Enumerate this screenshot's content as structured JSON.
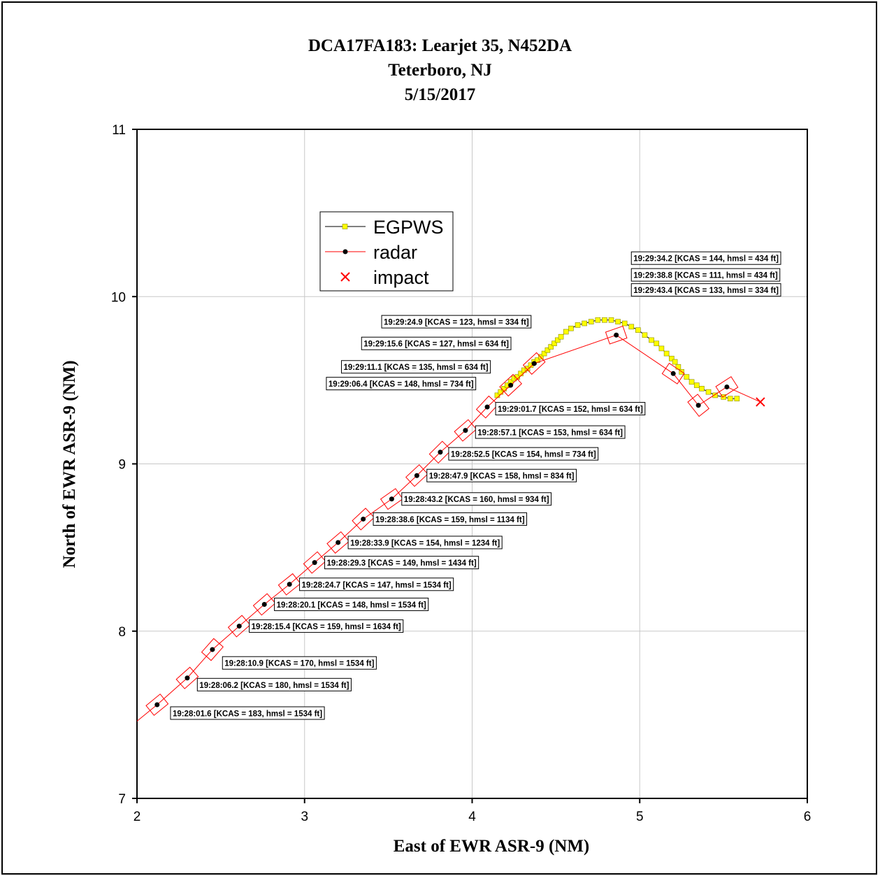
{
  "chart_data": {
    "type": "scatter",
    "title_lines": [
      "DCA17FA183:  Learjet 35, N452DA",
      "Teterboro, NJ",
      "5/15/2017"
    ],
    "xlabel": "East of EWR ASR-9 (NM)",
    "ylabel": "North of EWR ASR-9 (NM)",
    "xlim": [
      2,
      6
    ],
    "ylim": [
      7,
      11
    ],
    "xticks": [
      2,
      3,
      4,
      5,
      6
    ],
    "yticks": [
      7,
      8,
      9,
      10,
      11
    ],
    "grid": true,
    "legend_position": "upper-left",
    "colors": {
      "egpws_marker": "#ffff00",
      "egpws_line": "#000000",
      "radar_line": "#ff0000",
      "radar_marker": "#000000",
      "impact": "#ff0000"
    },
    "series": [
      {
        "name": "EGPWS",
        "marker": "square",
        "x": [
          4.15,
          4.17,
          4.19,
          4.21,
          4.23,
          4.25,
          4.27,
          4.29,
          4.31,
          4.33,
          4.35,
          4.37,
          4.39,
          4.41,
          4.43,
          4.45,
          4.47,
          4.49,
          4.51,
          4.53,
          4.56,
          4.59,
          4.63,
          4.67,
          4.71,
          4.75,
          4.79,
          4.83,
          4.87,
          4.91,
          4.95,
          4.99,
          5.03,
          5.07,
          5.1,
          5.13,
          5.16,
          5.19,
          5.21,
          5.23,
          5.25,
          5.28,
          5.31,
          5.34,
          5.37,
          5.41,
          5.45,
          5.5,
          5.54,
          5.58
        ],
        "y": [
          9.41,
          9.43,
          9.45,
          9.47,
          9.49,
          9.51,
          9.52,
          9.54,
          9.56,
          9.57,
          9.59,
          9.61,
          9.62,
          9.64,
          9.66,
          9.68,
          9.7,
          9.72,
          9.74,
          9.76,
          9.79,
          9.81,
          9.83,
          9.84,
          9.85,
          9.86,
          9.86,
          9.86,
          9.85,
          9.84,
          9.82,
          9.8,
          9.77,
          9.74,
          9.72,
          9.69,
          9.66,
          9.63,
          9.61,
          9.58,
          9.55,
          9.52,
          9.49,
          9.47,
          9.45,
          9.43,
          9.41,
          9.4,
          9.39,
          9.39
        ]
      },
      {
        "name": "radar",
        "marker": "circle",
        "x": [
          1.9,
          2.12,
          2.3,
          2.45,
          2.61,
          2.76,
          2.91,
          3.06,
          3.2,
          3.35,
          3.52,
          3.67,
          3.81,
          3.96,
          4.09,
          4.23,
          4.37,
          4.86,
          5.2,
          5.35,
          5.52,
          5.72
        ],
        "y": [
          7.38,
          7.56,
          7.72,
          7.89,
          8.03,
          8.16,
          8.28,
          8.41,
          8.53,
          8.67,
          8.79,
          8.93,
          9.07,
          9.2,
          9.34,
          9.47,
          9.6,
          9.77,
          9.54,
          9.35,
          9.46,
          9.37
        ]
      },
      {
        "name": "impact",
        "marker": "x",
        "x": [
          5.72
        ],
        "y": [
          9.37
        ]
      }
    ],
    "annotations": [
      {
        "text": "19:28:01.6 [KCAS = 183, hmsl = 1534 ft]",
        "x": 2.2,
        "y": 7.51
      },
      {
        "text": "19:28:06.2 [KCAS = 180, hmsl = 1534 ft]",
        "x": 2.36,
        "y": 7.68
      },
      {
        "text": "19:28:10.9 [KCAS = 170, hmsl = 1534 ft]",
        "x": 2.51,
        "y": 7.81
      },
      {
        "text": "19:28:15.4 [KCAS = 159, hmsl = 1634 ft]",
        "x": 2.67,
        "y": 8.03
      },
      {
        "text": "19:28:20.1 [KCAS = 148, hmsl = 1534 ft]",
        "x": 2.82,
        "y": 8.16
      },
      {
        "text": "19:28:24.7 [KCAS = 147, hmsl = 1534 ft]",
        "x": 2.97,
        "y": 8.28
      },
      {
        "text": "19:28:29.3 [KCAS = 149, hmsl = 1434 ft]",
        "x": 3.12,
        "y": 8.41
      },
      {
        "text": "19:28:33.9 [KCAS = 154, hmsl = 1234 ft]",
        "x": 3.26,
        "y": 8.53
      },
      {
        "text": "19:28:38.6 [KCAS = 159, hmsl = 1134 ft]",
        "x": 3.41,
        "y": 8.67
      },
      {
        "text": "19:28:43.2 [KCAS = 160, hmsl = 934 ft]",
        "x": 3.58,
        "y": 8.79
      },
      {
        "text": "19:28:47.9 [KCAS = 158, hmsl = 834 ft]",
        "x": 3.73,
        "y": 8.93
      },
      {
        "text": "19:28:52.5 [KCAS = 154, hmsl = 734 ft]",
        "x": 3.86,
        "y": 9.06
      },
      {
        "text": "19:28:57.1 [KCAS = 153, hmsl = 634 ft]",
        "x": 4.02,
        "y": 9.19
      },
      {
        "text": "19:29:01.7 [KCAS = 152, hmsl = 634 ft]",
        "x": 4.14,
        "y": 9.33
      },
      {
        "text": "19:29:06.4 [KCAS = 148, hmsl = 734 ft]",
        "x": 3.13,
        "y": 9.48
      },
      {
        "text": "19:29:11.1 [KCAS = 135, hmsl = 634 ft]",
        "x": 3.22,
        "y": 9.58
      },
      {
        "text": "19:29:15.6 [KCAS = 127, hmsl = 634 ft]",
        "x": 3.34,
        "y": 9.72
      },
      {
        "text": "19:29:24.9 [KCAS = 123, hmsl = 334 ft]",
        "x": 3.46,
        "y": 9.85
      },
      {
        "text": "19:29:34.2 [KCAS = 144, hmsl = 434 ft]",
        "x": 4.95,
        "y": 10.23
      },
      {
        "text": "19:29:38.8 [KCAS = 111, hmsl = 434 ft]",
        "x": 4.95,
        "y": 10.13
      },
      {
        "text": "19:29:43.4 [KCAS = 133, hmsl = 334 ft]",
        "x": 4.95,
        "y": 10.04
      }
    ]
  }
}
